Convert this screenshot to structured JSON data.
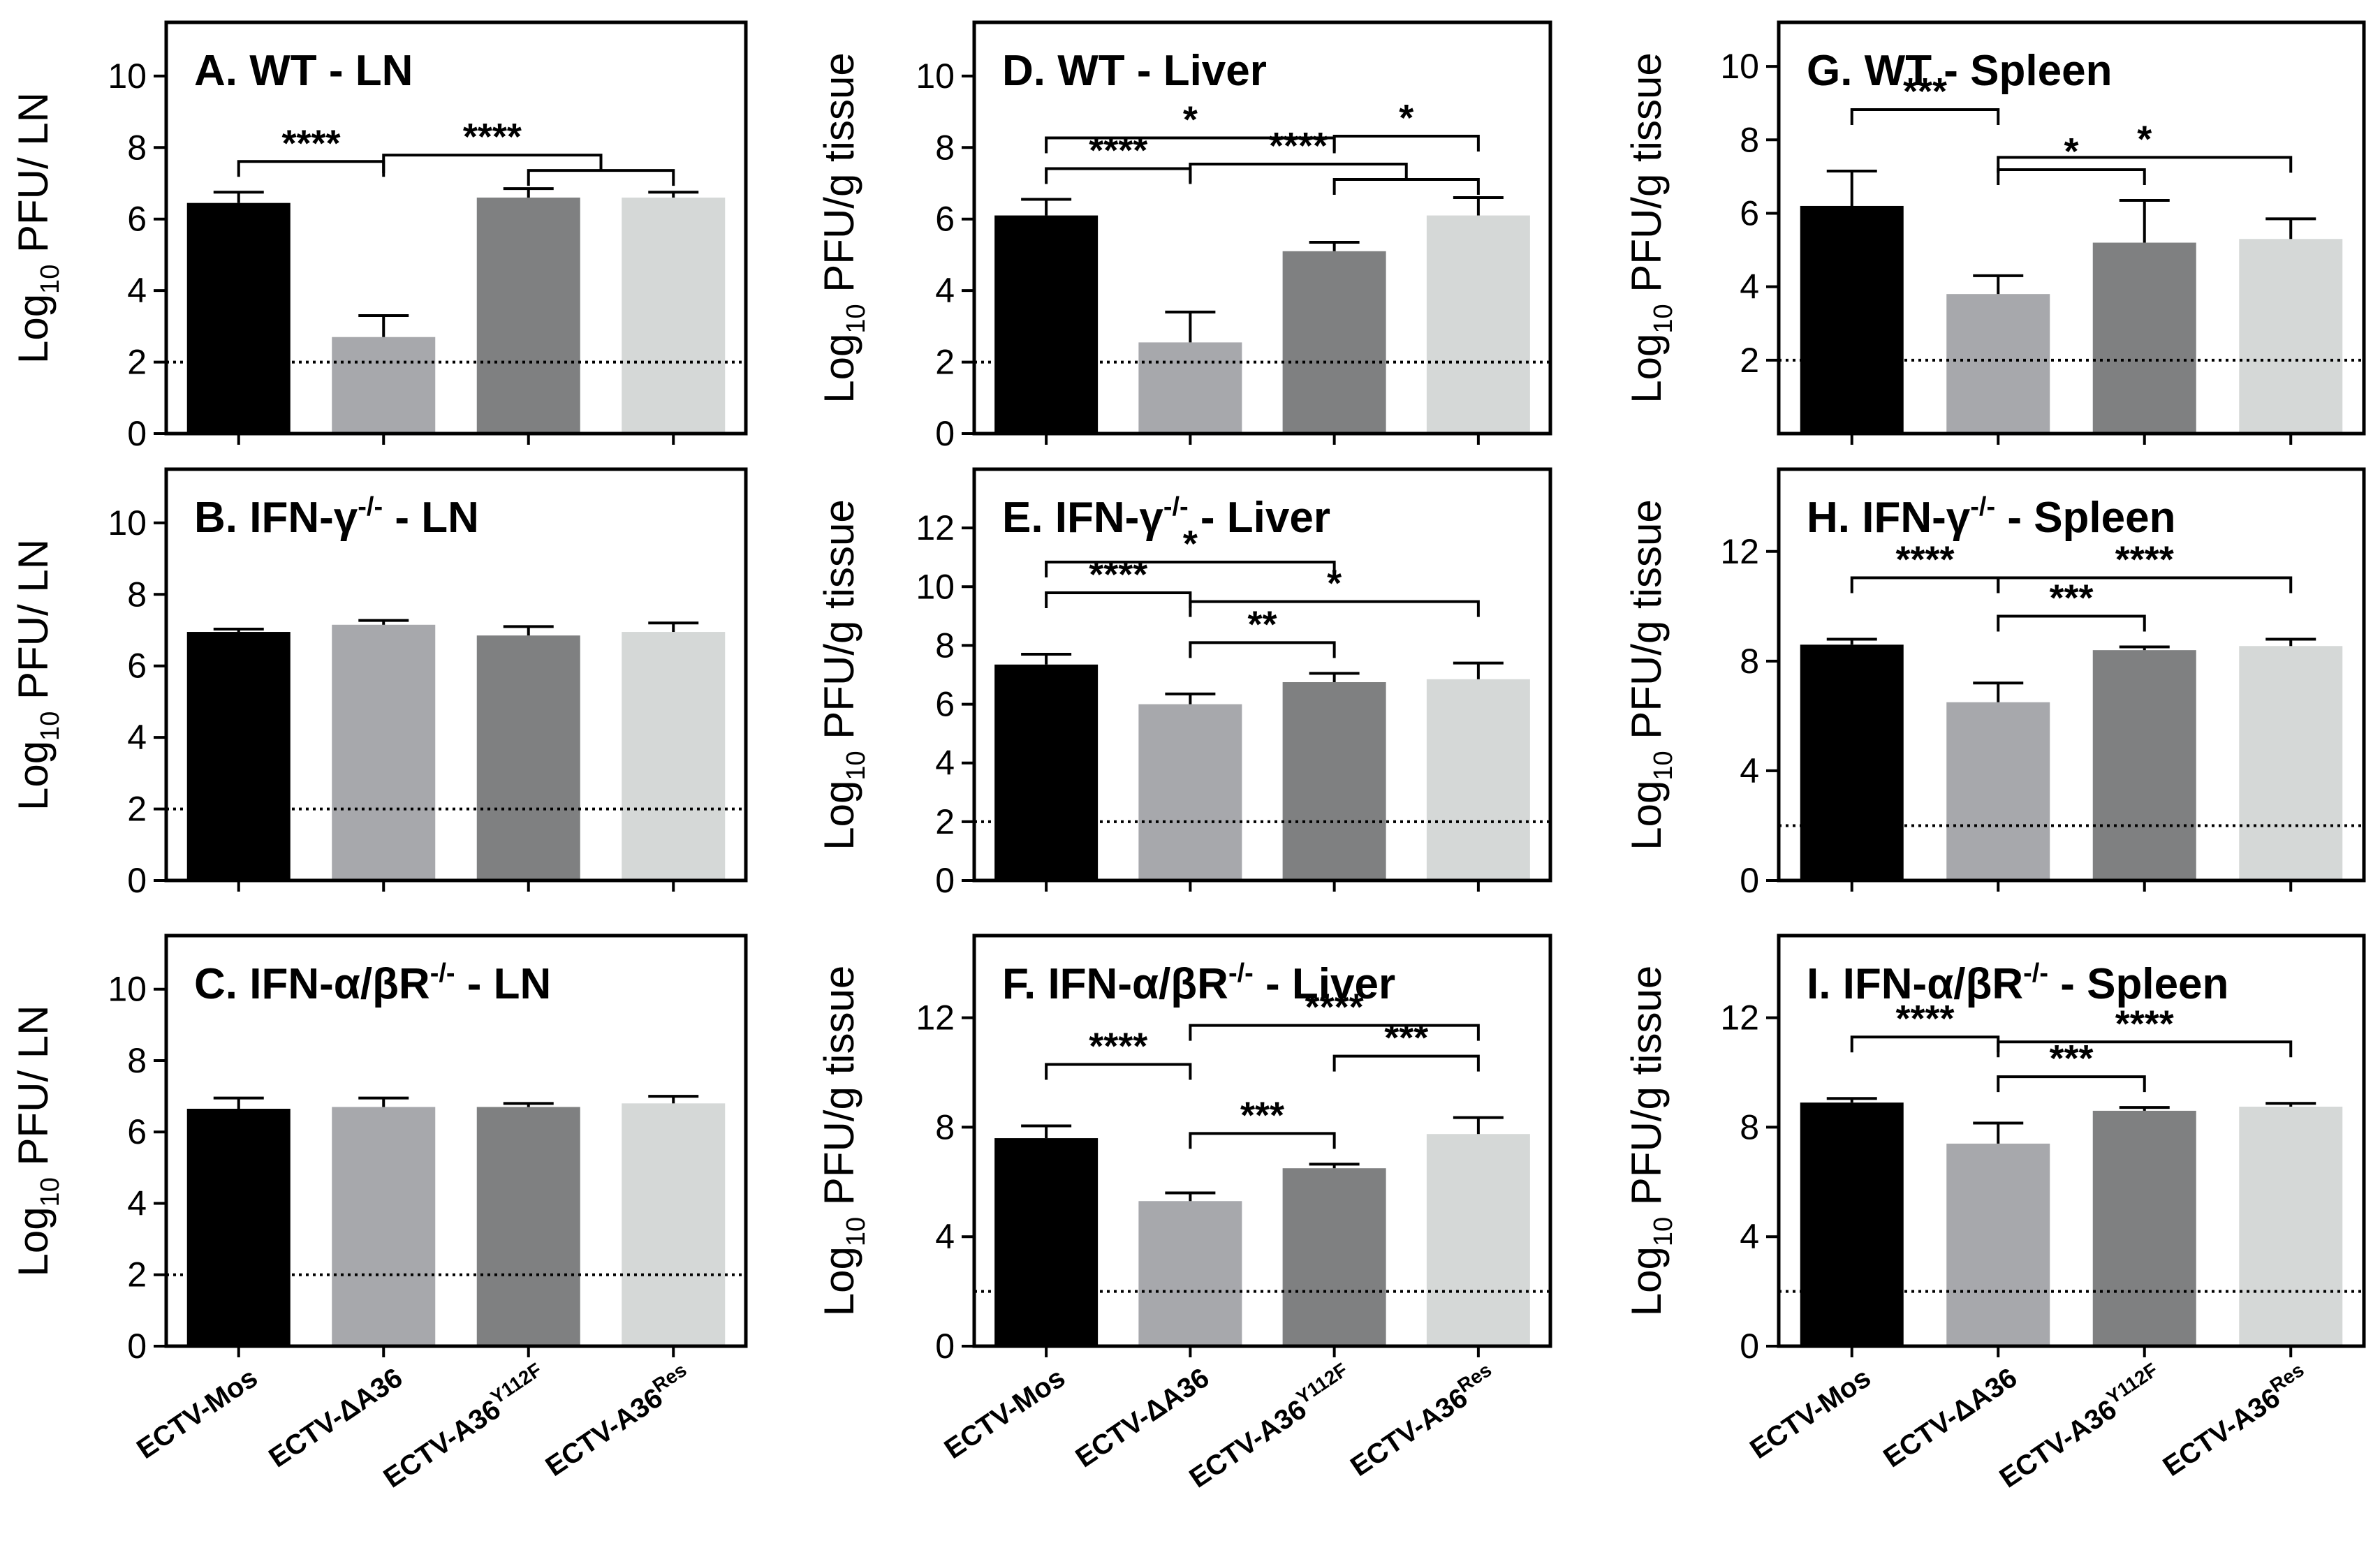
{
  "figure": {
    "colors": {
      "bar1": "#000000",
      "bar2": "#a7a8ac",
      "bar3": "#7f8081",
      "bar4": "#d5d8d7",
      "frame": "#000000"
    },
    "x_axis_labels": [
      {
        "main": "ECTV-Mos",
        "sup": ""
      },
      {
        "main": "ECTV-ΔA36",
        "sup": ""
      },
      {
        "main": "ECTV-A36",
        "sup": "Y112F"
      },
      {
        "main": "ECTV-A36",
        "sup": "Res"
      }
    ]
  },
  "chart_data": [
    {
      "id": "A",
      "type": "bar",
      "title": {
        "main": "A. WT  -  LN",
        "sup": "",
        "tail": ""
      },
      "ylabel": {
        "prefix": "Log",
        "sub": "10",
        "suffix": " PFU/ LN"
      },
      "ylim": [
        0,
        11.5
      ],
      "yticks": [
        0,
        2,
        4,
        6,
        8,
        10
      ],
      "detection_limit": 2,
      "series": [
        {
          "name": "PFU",
          "values": [
            6.45,
            2.7,
            6.6,
            6.6
          ],
          "errors": [
            0.3,
            0.6,
            0.25,
            0.15
          ]
        }
      ],
      "significance": [
        {
          "label": "****",
          "from": 0,
          "to": 1,
          "level": 0
        },
        {
          "label": "****",
          "from": 1,
          "to": [
            2,
            3
          ],
          "level": 0
        }
      ]
    },
    {
      "id": "B",
      "type": "bar",
      "title": {
        "main": "B. IFN-γ",
        "sup": "-/-",
        "tail": "  -  LN"
      },
      "ylabel": {
        "prefix": "Log",
        "sub": "10",
        "suffix": " PFU/ LN"
      },
      "ylim": [
        0,
        11.5
      ],
      "yticks": [
        0,
        2,
        4,
        6,
        8,
        10
      ],
      "detection_limit": 2,
      "series": [
        {
          "name": "PFU",
          "values": [
            6.95,
            7.15,
            6.85,
            6.95
          ],
          "errors": [
            0.08,
            0.12,
            0.25,
            0.25
          ]
        }
      ],
      "significance": []
    },
    {
      "id": "C",
      "type": "bar",
      "title": {
        "main": "C. IFN-α/βR",
        "sup": "-/-",
        "tail": "  -  LN"
      },
      "ylabel": {
        "prefix": "Log",
        "sub": "10",
        "suffix": " PFU/ LN"
      },
      "ylim": [
        0,
        11.5
      ],
      "yticks": [
        0,
        2,
        4,
        6,
        8,
        10
      ],
      "detection_limit": 2,
      "series": [
        {
          "name": "PFU",
          "values": [
            6.65,
            6.7,
            6.7,
            6.8
          ],
          "errors": [
            0.3,
            0.25,
            0.1,
            0.2
          ]
        }
      ],
      "significance": []
    },
    {
      "id": "D",
      "type": "bar",
      "title": {
        "main": "D. WT - Liver",
        "sup": "",
        "tail": ""
      },
      "ylabel": {
        "prefix": "Log",
        "sub": "10",
        "suffix": " PFU/g tissue"
      },
      "ylim": [
        0,
        11.5
      ],
      "yticks": [
        0,
        2,
        4,
        6,
        8,
        10
      ],
      "detection_limit": 2,
      "series": [
        {
          "name": "PFU",
          "values": [
            6.1,
            2.55,
            5.1,
            6.1
          ],
          "errors": [
            0.45,
            0.85,
            0.25,
            0.5
          ]
        }
      ],
      "significance": [
        {
          "label": "****",
          "from": 0,
          "to": 1,
          "level": 0
        },
        {
          "label": "****",
          "from": 1,
          "to": [
            2,
            3
          ],
          "level": 0
        },
        {
          "label": "*",
          "from": 0,
          "to": 2,
          "level": 1
        },
        {
          "label": "*",
          "from": 2,
          "to": 3,
          "level": 1
        }
      ]
    },
    {
      "id": "E",
      "type": "bar",
      "title": {
        "main": "E. IFN-γ",
        "sup": "-/-",
        "tail": " - Liver"
      },
      "ylabel": {
        "prefix": "Log",
        "sub": "10",
        "suffix": " PFU/g tissue"
      },
      "ylim": [
        0,
        14
      ],
      "yticks": [
        0,
        2,
        4,
        6,
        8,
        10,
        12
      ],
      "detection_limit": 2,
      "series": [
        {
          "name": "PFU",
          "values": [
            7.35,
            6.0,
            6.75,
            6.85
          ],
          "errors": [
            0.35,
            0.35,
            0.3,
            0.55
          ]
        }
      ],
      "significance": [
        {
          "label": "*",
          "from": 0,
          "to": 2,
          "level": 2
        },
        {
          "label": "****",
          "from": 0,
          "to": 1,
          "level": 1
        },
        {
          "label": "*",
          "from": 1,
          "to": 3,
          "level": 1
        },
        {
          "label": "**",
          "from": 1,
          "to": 2,
          "level": 0
        }
      ]
    },
    {
      "id": "F",
      "type": "bar",
      "title": {
        "main": "F. IFN-α/βR",
        "sup": "-/-",
        "tail": "  -  Liver"
      },
      "ylabel": {
        "prefix": "Log",
        "sub": "10",
        "suffix": " PFU/g tissue"
      },
      "ylim": [
        0,
        15
      ],
      "yticks": [
        0,
        4,
        8,
        12
      ],
      "detection_limit": 2,
      "series": [
        {
          "name": "PFU",
          "values": [
            7.6,
            5.3,
            6.5,
            7.75
          ],
          "errors": [
            0.45,
            0.3,
            0.15,
            0.6
          ]
        }
      ],
      "significance": [
        {
          "label": "****",
          "from": 1,
          "to": 3,
          "level": 2
        },
        {
          "label": "****",
          "from": 0,
          "to": 1,
          "level": 1
        },
        {
          "label": "***",
          "from": 2,
          "to": 3,
          "level": 1
        },
        {
          "label": "***",
          "from": 1,
          "to": 2,
          "level": 0
        }
      ]
    },
    {
      "id": "G",
      "type": "bar",
      "title": {
        "main": "G. WT  -  Spleen",
        "sup": "",
        "tail": ""
      },
      "ylabel": {
        "prefix": "Log",
        "sub": "10",
        "suffix": " PFU/g tissue"
      },
      "ylim": [
        0,
        11.2
      ],
      "yticks": [
        2,
        4,
        6,
        8,
        10
      ],
      "detection_limit": 2,
      "series": [
        {
          "name": "PFU",
          "values": [
            6.2,
            3.8,
            5.2,
            5.3
          ],
          "errors": [
            0.95,
            0.5,
            1.15,
            0.55
          ]
        }
      ],
      "significance": [
        {
          "label": "***",
          "from": 0,
          "to": 1,
          "level": 1
        },
        {
          "label": "*",
          "from": 1,
          "to": 3,
          "level": 1
        },
        {
          "label": "*",
          "from": 1,
          "to": 2,
          "level": 0
        }
      ]
    },
    {
      "id": "H",
      "type": "bar",
      "title": {
        "main": "H. IFN-γ",
        "sup": "-/-",
        "tail": "  -  Spleen"
      },
      "ylabel": {
        "prefix": "Log",
        "sub": "10",
        "suffix": " PFU/g tissue"
      },
      "ylim": [
        0,
        15
      ],
      "yticks": [
        0,
        4,
        8,
        12
      ],
      "detection_limit": 2,
      "series": [
        {
          "name": "PFU",
          "values": [
            8.6,
            6.5,
            8.4,
            8.55
          ],
          "errors": [
            0.2,
            0.7,
            0.12,
            0.25
          ]
        }
      ],
      "significance": [
        {
          "label": "****",
          "from": 0,
          "to": 1,
          "level": 1
        },
        {
          "label": "****",
          "from": 1,
          "to": 3,
          "level": 1
        },
        {
          "label": "***",
          "from": 1,
          "to": 2,
          "level": 0
        }
      ]
    },
    {
      "id": "I",
      "type": "bar",
      "title": {
        "main": "I. IFN-α/βR",
        "sup": "-/-",
        "tail": "  -  Spleen"
      },
      "ylabel": {
        "prefix": "Log",
        "sub": "10",
        "suffix": " PFU/g tissue"
      },
      "ylim": [
        0,
        15
      ],
      "yticks": [
        0,
        4,
        8,
        12
      ],
      "detection_limit": 2,
      "series": [
        {
          "name": "PFU",
          "values": [
            8.9,
            7.4,
            8.6,
            8.75
          ],
          "errors": [
            0.15,
            0.75,
            0.12,
            0.12
          ]
        }
      ],
      "significance": [
        {
          "label": "****",
          "from": 0,
          "to": 1,
          "level": 1
        },
        {
          "label": "****",
          "from": 1,
          "to": 3,
          "level": 1
        },
        {
          "label": "***",
          "from": 1,
          "to": 2,
          "level": 0
        }
      ]
    }
  ]
}
